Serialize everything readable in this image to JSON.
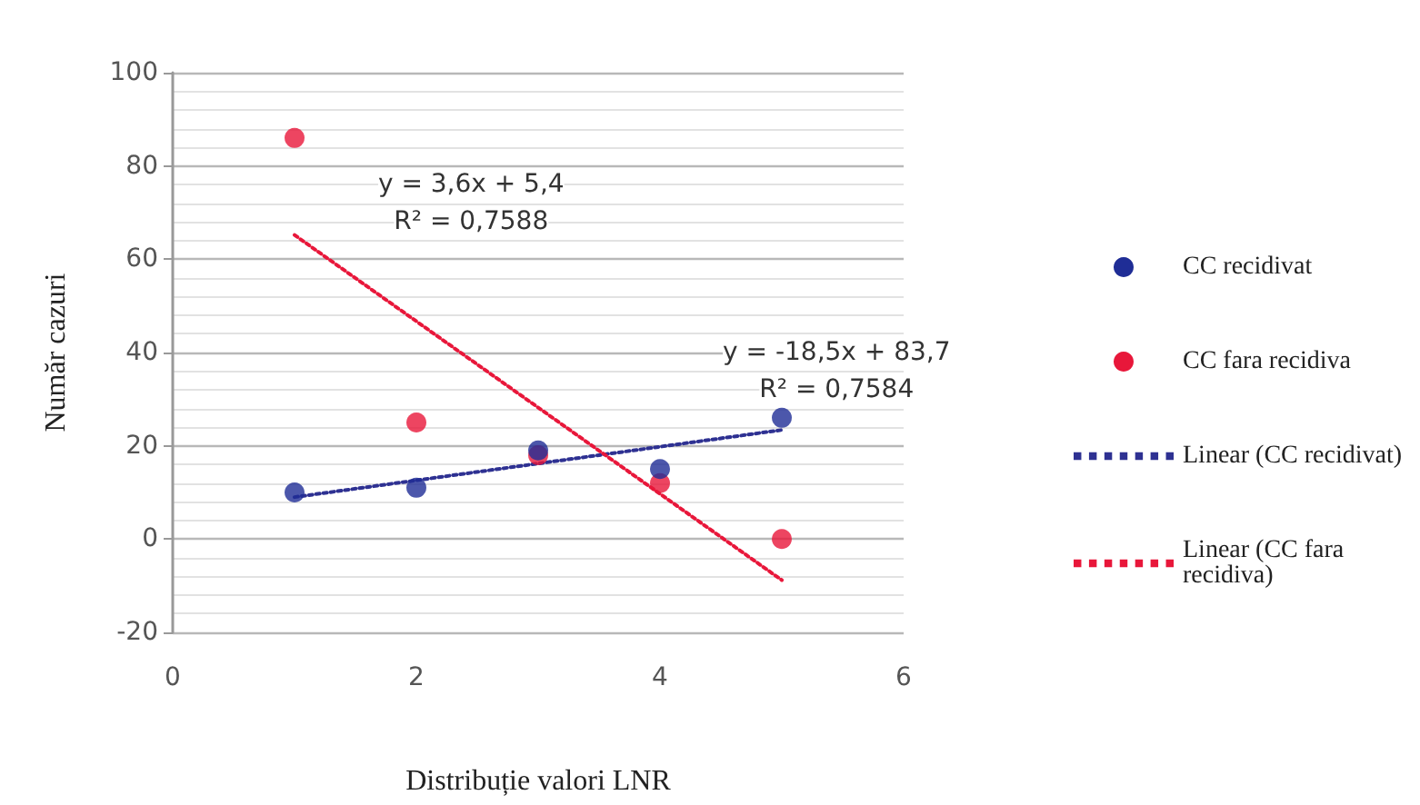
{
  "chart_data": {
    "type": "scatter",
    "xlabel": "Distribuție valori LNR",
    "ylabel": "Număr cazuri",
    "xlim": [
      0,
      6
    ],
    "xticks": [
      0,
      2,
      4,
      6
    ],
    "ylim": [
      -20,
      100
    ],
    "yticks": [
      -20,
      0,
      20,
      40,
      60,
      80,
      100
    ],
    "grid": "y",
    "legend": "right",
    "marker": "circle",
    "x": [
      1,
      2,
      3,
      4,
      5
    ],
    "series": [
      {
        "name": "CC recidivat",
        "color": "#1f2d96",
        "values": [
          10,
          11,
          19,
          15,
          26
        ]
      },
      {
        "name": "CC fara recidiva",
        "color": "#e8173a",
        "values": [
          86,
          25,
          18,
          12,
          0
        ]
      },
      {
        "name": "Linear (CC recidivat)",
        "type": "line",
        "line_style": "dotted",
        "marker": "none",
        "color": "#2e3192",
        "values": [
          9,
          12.6,
          16.2,
          19.8,
          23.4
        ]
      },
      {
        "name": "Linear (CC fara recidiva)",
        "type": "line",
        "line_style": "dotted",
        "marker": "none",
        "color": "#e8173a",
        "values": [
          65.2,
          46.7,
          28.2,
          9.7,
          -8.8
        ]
      }
    ],
    "annotations": [
      "y = 3,6x + 5,4",
      "R² = 0,7588",
      "y = -18,5x + 83,7",
      "R² = 0,7584"
    ]
  }
}
